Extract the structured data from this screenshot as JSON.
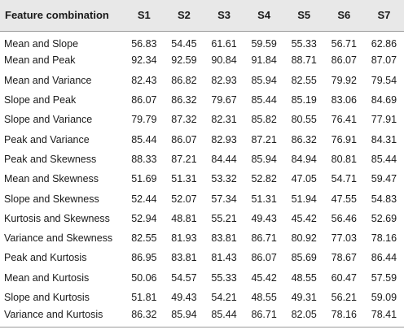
{
  "table": {
    "headers": [
      "Feature combination",
      "S1",
      "S2",
      "S3",
      "S4",
      "S5",
      "S6",
      "S7"
    ],
    "rows": [
      {
        "label": "Mean and Slope",
        "values": [
          "56.83",
          "54.45",
          "61.61",
          "59.59",
          "55.33",
          "56.71",
          "62.86"
        ]
      },
      {
        "label": "Mean and Peak",
        "values": [
          "92.34",
          "92.59",
          "90.84",
          "91.84",
          "88.71",
          "86.07",
          "87.07"
        ]
      },
      {
        "label": "Mean and Variance",
        "values": [
          "82.43",
          "86.82",
          "82.93",
          "85.94",
          "82.55",
          "79.92",
          "79.54"
        ]
      },
      {
        "label": "Slope and Peak",
        "values": [
          "86.07",
          "86.32",
          "79.67",
          "85.44",
          "85.19",
          "83.06",
          "84.69"
        ]
      },
      {
        "label": "Slope and Variance",
        "values": [
          "79.79",
          "87.32",
          "82.31",
          "85.82",
          "80.55",
          "76.41",
          "77.91"
        ]
      },
      {
        "label": "Peak and Variance",
        "values": [
          "85.44",
          "86.07",
          "82.93",
          "87.21",
          "86.32",
          "76.91",
          "84.31"
        ]
      },
      {
        "label": "Peak and Skewness",
        "values": [
          "88.33",
          "87.21",
          "84.44",
          "85.94",
          "84.94",
          "80.81",
          "85.44"
        ]
      },
      {
        "label": "Mean and Skewness",
        "values": [
          "51.69",
          "51.31",
          "53.32",
          "52.82",
          "47.05",
          "54.71",
          "59.47"
        ]
      },
      {
        "label": "Slope and Skewness",
        "values": [
          "52.44",
          "52.07",
          "57.34",
          "51.31",
          "51.94",
          "47.55",
          "54.83"
        ]
      },
      {
        "label": "Kurtosis and Skewness",
        "values": [
          "52.94",
          "48.81",
          "55.21",
          "49.43",
          "45.42",
          "56.46",
          "52.69"
        ]
      },
      {
        "label": "Variance and Skewness",
        "values": [
          "82.55",
          "81.93",
          "83.81",
          "86.71",
          "80.92",
          "77.03",
          "78.16"
        ]
      },
      {
        "label": "Peak and Kurtosis",
        "values": [
          "86.95",
          "83.81",
          "81.43",
          "86.07",
          "85.69",
          "78.67",
          "86.44"
        ]
      },
      {
        "label": "Mean and Kurtosis",
        "values": [
          "50.06",
          "54.57",
          "55.33",
          "45.42",
          "48.55",
          "60.47",
          "57.59"
        ]
      },
      {
        "label": "Slope and Kurtosis",
        "values": [
          "51.81",
          "49.43",
          "54.21",
          "48.55",
          "49.31",
          "56.21",
          "59.09"
        ]
      },
      {
        "label": "Variance and Kurtosis",
        "values": [
          "86.32",
          "85.94",
          "85.44",
          "86.71",
          "82.05",
          "78.16",
          "78.41"
        ]
      }
    ]
  }
}
